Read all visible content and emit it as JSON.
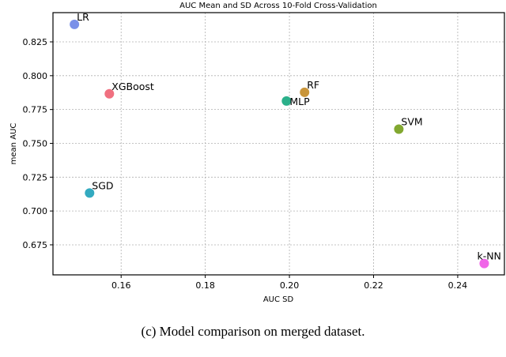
{
  "chart_data": {
    "type": "scatter",
    "title": "AUC Mean and SD Across 10-Fold Cross-Validation",
    "xlabel": "AUC SD",
    "ylabel": "mean AUC",
    "xlim": [
      0.1438,
      0.2511
    ],
    "ylim": [
      0.6528,
      0.8466
    ],
    "xticks": [
      0.16,
      0.18,
      0.2,
      0.22,
      0.24
    ],
    "xtick_labels": [
      "0.16",
      "0.18",
      "0.20",
      "0.22",
      "0.24"
    ],
    "yticks": [
      0.675,
      0.7,
      0.725,
      0.75,
      0.775,
      0.8,
      0.825
    ],
    "ytick_labels": [
      "0.675",
      "0.700",
      "0.725",
      "0.750",
      "0.775",
      "0.800",
      "0.825"
    ],
    "grid": true,
    "points": [
      {
        "name": "LR",
        "x": 0.1489,
        "y": 0.8379,
        "color": "#7a90e8"
      },
      {
        "name": "XGBoost",
        "x": 0.1572,
        "y": 0.7866,
        "color": "#f07080"
      },
      {
        "name": "RF",
        "x": 0.2036,
        "y": 0.7877,
        "color": "#c9953a"
      },
      {
        "name": "MLP",
        "x": 0.1993,
        "y": 0.7813,
        "color": "#2bb08a"
      },
      {
        "name": "SVM",
        "x": 0.226,
        "y": 0.7605,
        "color": "#82a830"
      },
      {
        "name": "SGD",
        "x": 0.1525,
        "y": 0.7133,
        "color": "#33aac0"
      },
      {
        "name": "k-NN",
        "x": 0.2463,
        "y": 0.6612,
        "color": "#f066e8"
      }
    ]
  },
  "caption": "(c) Model comparison on merged dataset."
}
